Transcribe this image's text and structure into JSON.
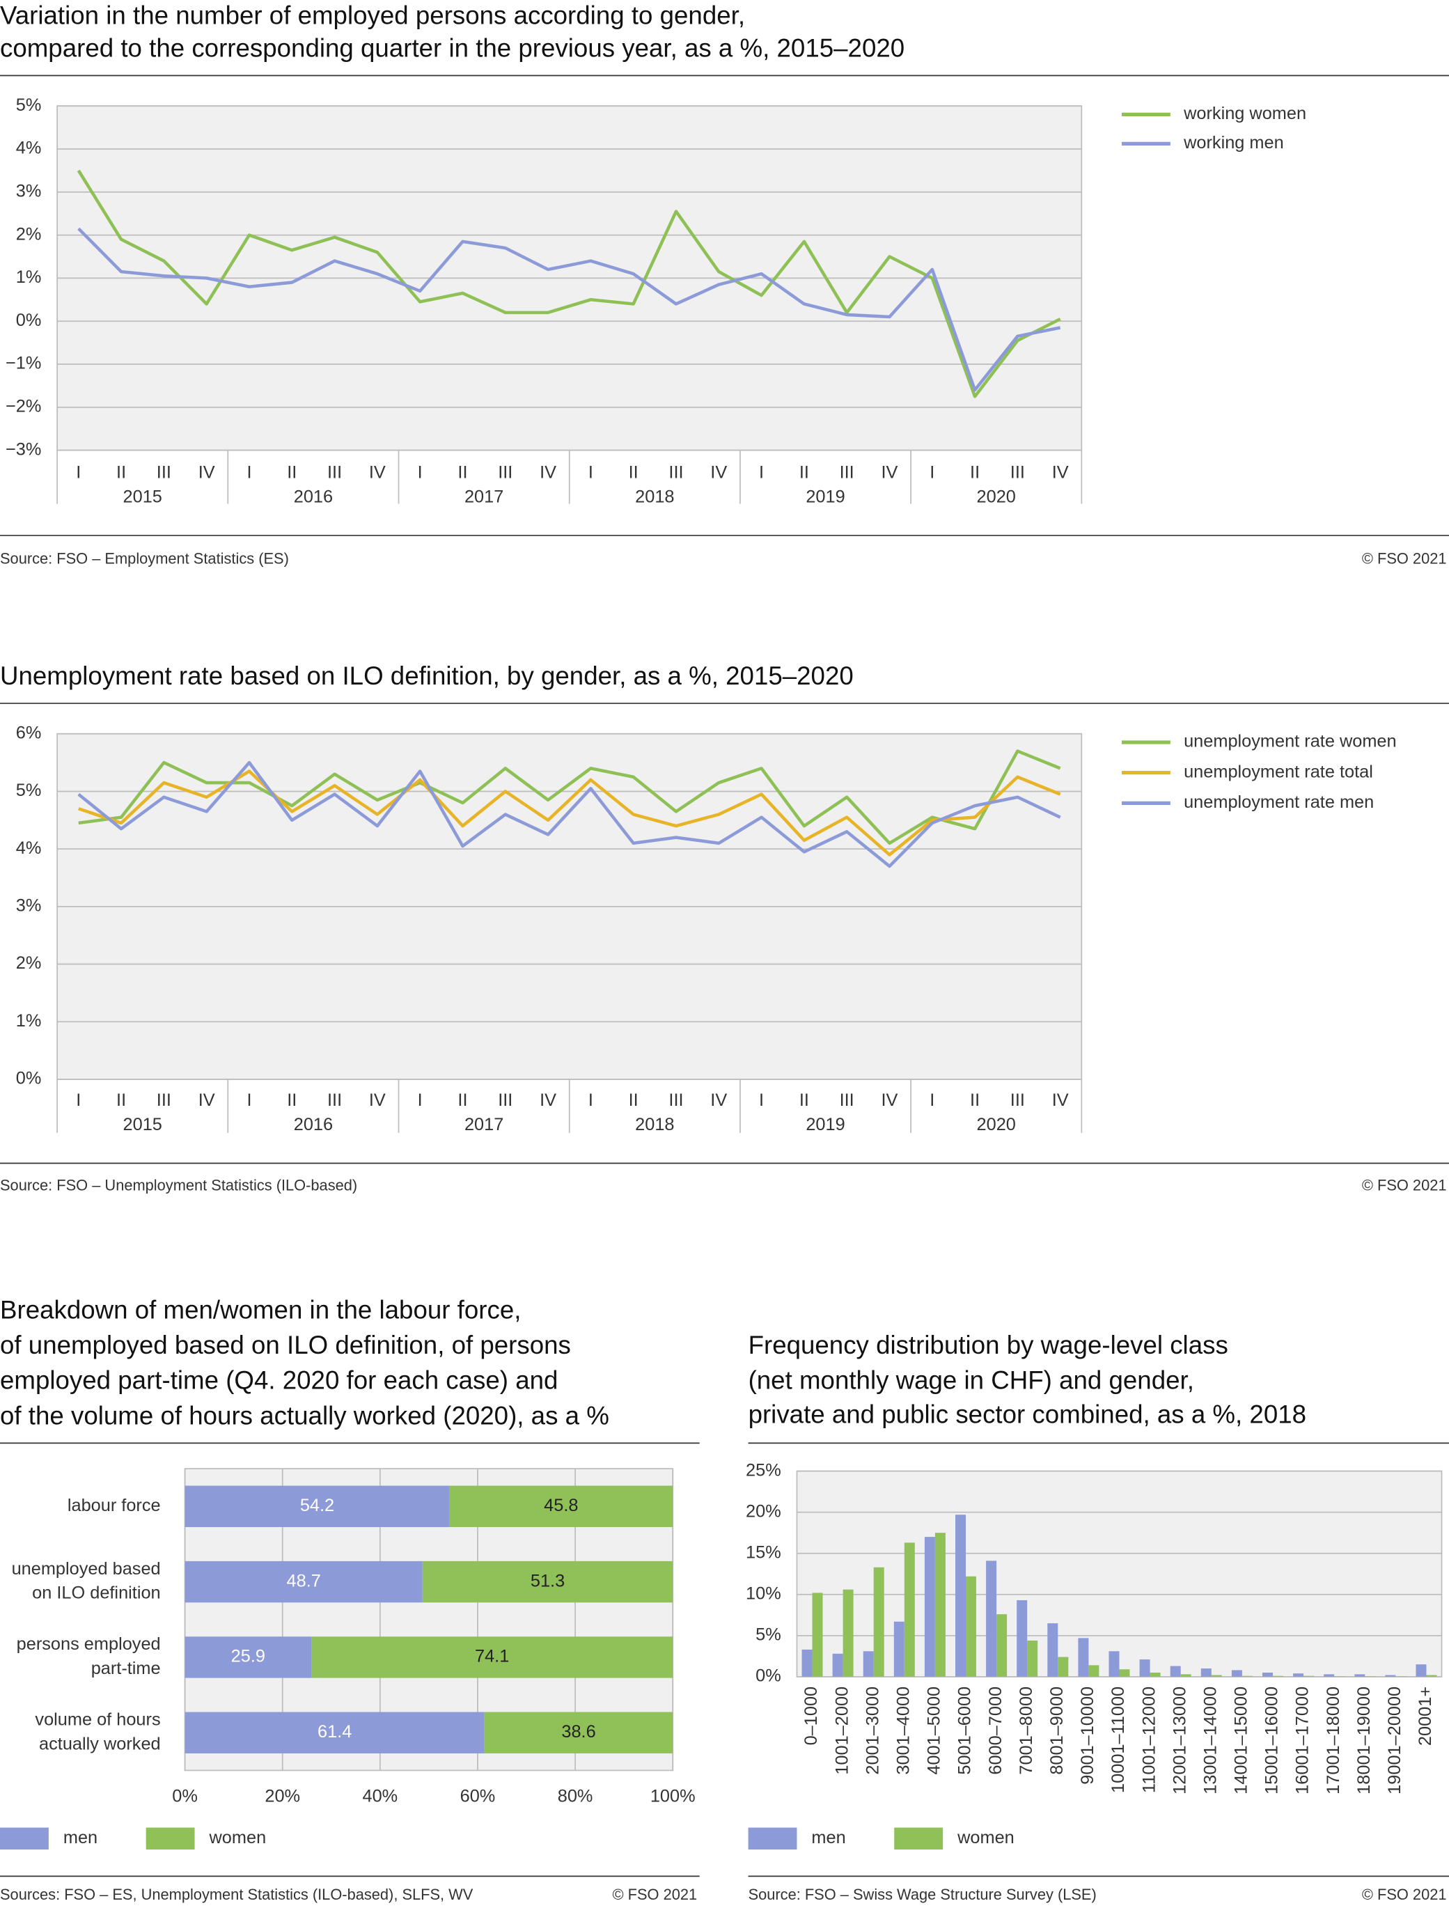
{
  "chart_data": [
    {
      "type": "line",
      "title": [
        "Variation in the number of employed persons according to gender,",
        "compared to the corresponding quarter in the previous year, as a %, 2015–2020"
      ],
      "categories": [
        "I",
        "II",
        "III",
        "IV",
        "I",
        "II",
        "III",
        "IV",
        "I",
        "II",
        "III",
        "IV",
        "I",
        "II",
        "III",
        "IV",
        "I",
        "II",
        "III",
        "IV",
        "I",
        "II",
        "III",
        "IV"
      ],
      "x_groups": [
        "2015",
        "2016",
        "2017",
        "2018",
        "2019",
        "2020"
      ],
      "ylim": [
        -3,
        5
      ],
      "yticks": [
        {
          "value": -3,
          "label": "−3%"
        },
        {
          "value": -2,
          "label": "−2%"
        },
        {
          "value": -1,
          "label": "−1%"
        },
        {
          "value": 0,
          "label": "0%"
        },
        {
          "value": 1,
          "label": "1%"
        },
        {
          "value": 2,
          "label": "2%"
        },
        {
          "value": 3,
          "label": "3%"
        },
        {
          "value": 4,
          "label": "4%"
        },
        {
          "value": 5,
          "label": "5%"
        }
      ],
      "grid": true,
      "legend": "right",
      "series": [
        {
          "name": "working women",
          "color": "#8fc056",
          "values": [
            3.5,
            1.9,
            1.4,
            0.4,
            2.0,
            1.65,
            1.95,
            1.6,
            0.45,
            0.65,
            0.2,
            0.2,
            0.5,
            0.4,
            2.55,
            1.15,
            0.6,
            1.85,
            0.2,
            1.5,
            1.0,
            -1.75,
            -0.45,
            0.05
          ]
        },
        {
          "name": "working men",
          "color": "#8c9bd8",
          "values": [
            2.15,
            1.15,
            1.05,
            1.0,
            0.8,
            0.9,
            1.4,
            1.1,
            0.7,
            1.85,
            1.7,
            1.2,
            1.4,
            1.1,
            0.4,
            0.85,
            1.1,
            0.4,
            0.15,
            0.1,
            1.2,
            -1.6,
            -0.35,
            -0.15
          ]
        }
      ],
      "source": "Source: FSO – Employment Statistics (ES)",
      "copyright": "© FSO 2021"
    },
    {
      "type": "line",
      "title": [
        "Unemployment rate based on ILO definition, by gender, as a %, 2015–2020"
      ],
      "categories": [
        "I",
        "II",
        "III",
        "IV",
        "I",
        "II",
        "III",
        "IV",
        "I",
        "II",
        "III",
        "IV",
        "I",
        "II",
        "III",
        "IV",
        "I",
        "II",
        "III",
        "IV",
        "I",
        "II",
        "III",
        "IV"
      ],
      "x_groups": [
        "2015",
        "2016",
        "2017",
        "2018",
        "2019",
        "2020"
      ],
      "ylim": [
        0,
        6
      ],
      "yticks": [
        {
          "value": 0,
          "label": "0%"
        },
        {
          "value": 1,
          "label": "1%"
        },
        {
          "value": 2,
          "label": "2%"
        },
        {
          "value": 3,
          "label": "3%"
        },
        {
          "value": 4,
          "label": "4%"
        },
        {
          "value": 5,
          "label": "5%"
        },
        {
          "value": 6,
          "label": "6%"
        }
      ],
      "grid": true,
      "legend": "right",
      "series": [
        {
          "name": "unemployment rate women",
          "color": "#8fc056",
          "values": [
            4.45,
            4.55,
            5.5,
            5.15,
            5.15,
            4.75,
            5.3,
            4.85,
            5.15,
            4.8,
            5.4,
            4.85,
            5.4,
            5.25,
            4.65,
            5.15,
            5.4,
            4.4,
            4.9,
            4.1,
            4.55,
            4.35,
            5.7,
            5.4
          ]
        },
        {
          "name": "unemployment rate total",
          "color": "#e8b427",
          "values": [
            4.7,
            4.45,
            5.15,
            4.9,
            5.35,
            4.65,
            5.1,
            4.6,
            5.2,
            4.4,
            5.0,
            4.5,
            5.2,
            4.6,
            4.4,
            4.6,
            4.95,
            4.15,
            4.55,
            3.9,
            4.5,
            4.55,
            5.25,
            4.95
          ]
        },
        {
          "name": "unemployment rate men",
          "color": "#8c9bd8",
          "values": [
            4.95,
            4.35,
            4.9,
            4.65,
            5.5,
            4.5,
            4.95,
            4.4,
            5.35,
            4.05,
            4.6,
            4.25,
            5.05,
            4.1,
            4.2,
            4.1,
            4.55,
            3.95,
            4.3,
            3.7,
            4.45,
            4.75,
            4.9,
            4.55
          ]
        }
      ],
      "source": "Source: FSO – Unemployment Statistics (ILO-based)",
      "copyright": "© FSO 2021"
    },
    {
      "type": "hbar_stacked",
      "title": [
        "Breakdown of men/women in the labour force,",
        "of unemployed based on ILO definition, of persons",
        "employed part-time (Q4. 2020 for each case) and",
        "of the volume of hours actually worked (2020), as a %"
      ],
      "categories": [
        [
          "labour force"
        ],
        [
          "unemployed based",
          "on ILO definition"
        ],
        [
          "persons employed",
          "part-time"
        ],
        [
          "volume of hours",
          "actually worked"
        ]
      ],
      "xlim": [
        0,
        100
      ],
      "xticks": [
        {
          "value": 0,
          "label": "0%"
        },
        {
          "value": 20,
          "label": "20%"
        },
        {
          "value": 40,
          "label": "40%"
        },
        {
          "value": 60,
          "label": "60%"
        },
        {
          "value": 80,
          "label": "80%"
        },
        {
          "value": 100,
          "label": "100%"
        }
      ],
      "grid": true,
      "legend": "bottom",
      "series": [
        {
          "name": "men",
          "color": "#8c9bd8",
          "values": [
            54.2,
            48.7,
            25.9,
            61.4
          ]
        },
        {
          "name": "women",
          "color": "#90c058",
          "values": [
            45.8,
            51.3,
            74.1,
            38.6
          ]
        }
      ],
      "source": "Sources: FSO – ES, Unemployment Statistics (ILO-based), SLFS, WV",
      "copyright": "© FSO 2021"
    },
    {
      "type": "bar_grouped",
      "title": [
        "Frequency distribution by wage-level class",
        "(net monthly wage in CHF) and gender,",
        "private and public sector combined, as a %, 2018"
      ],
      "categories": [
        "0–1000",
        "1001–2000",
        "2001–3000",
        "3001–4000",
        "4001–5000",
        "5001–6000",
        "6000–7000",
        "7001–8000",
        "8001–9000",
        "9001–10000",
        "10001–11000",
        "11001–12000",
        "12001–13000",
        "13001–14000",
        "14001–15000",
        "15001–16000",
        "16001–17000",
        "17001–18000",
        "18001–19000",
        "19001–20000",
        "20001+"
      ],
      "ylim": [
        0,
        25
      ],
      "yticks": [
        {
          "value": 0,
          "label": "0%"
        },
        {
          "value": 5,
          "label": "5%"
        },
        {
          "value": 10,
          "label": "10%"
        },
        {
          "value": 15,
          "label": "15%"
        },
        {
          "value": 20,
          "label": "20%"
        },
        {
          "value": 25,
          "label": "25%"
        }
      ],
      "grid": true,
      "legend": "bottom",
      "series": [
        {
          "name": "men",
          "color": "#8c9bd8",
          "values": [
            3.3,
            2.8,
            3.1,
            6.7,
            17.0,
            19.7,
            14.1,
            9.3,
            6.5,
            4.7,
            3.1,
            2.1,
            1.3,
            1.0,
            0.8,
            0.5,
            0.4,
            0.3,
            0.3,
            0.2,
            1.5
          ]
        },
        {
          "name": "women",
          "color": "#90c058",
          "values": [
            10.2,
            10.6,
            13.3,
            16.3,
            17.5,
            12.2,
            7.6,
            4.4,
            2.4,
            1.4,
            0.9,
            0.5,
            0.3,
            0.2,
            0.1,
            0.1,
            0.1,
            0.05,
            0.05,
            0.05,
            0.2
          ]
        }
      ],
      "source": "Source: FSO – Swiss Wage Structure Survey (LSE)",
      "copyright": "© FSO 2021"
    }
  ]
}
